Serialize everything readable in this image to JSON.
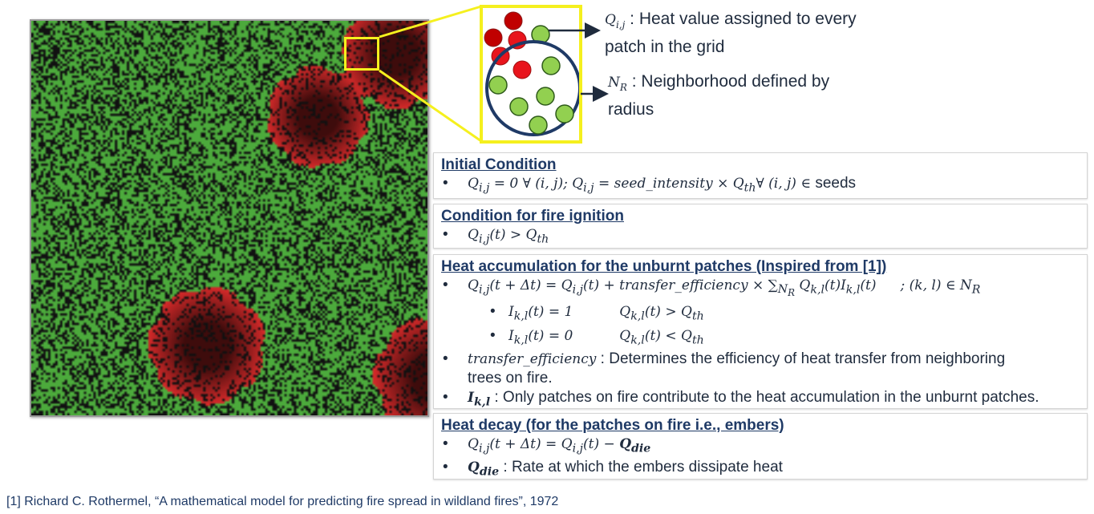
{
  "annotations": {
    "q_symbol": "Q",
    "q_sub": "i,j",
    "q_text_line1": " : Heat value assigned to every",
    "q_text_line2": "patch in the grid",
    "n_symbol": "N",
    "n_sub": "R",
    "n_text_line1": " : Neighborhood defined by",
    "n_text_line2": "radius"
  },
  "colors": {
    "healthy_tree": "#4caa3c",
    "burning_tree": "#d42a2a",
    "ember_dark": "#4a0a0a",
    "empty": "#111111",
    "highlight": "#f5f01e",
    "dot_fire": "#e8141c",
    "dot_fire_dark": "#c00000",
    "dot_tree": "#92d050",
    "ring": "#1f3a66"
  },
  "sections": {
    "initial": {
      "title": "Initial Condition",
      "eq": "Q",
      "eq1": "i,j",
      "eq2": " = 0 ∀ (i, j);     Q",
      "eq3": "i,j",
      "eq4": " = seed_intensity × Q",
      "eq5": "th",
      "eq6": "∀ (i, j) ∈ ",
      "eq_tail": "seeds"
    },
    "ignition": {
      "title": "Condition for fire ignition",
      "a": "Q",
      "b": "i,j",
      "c": "(t) > Q",
      "d": "th"
    },
    "accumulation": {
      "title": "Heat accumulation for the unburnt patches (Inspired from [1])",
      "eq_a": "Q",
      "eq_b": "i,j",
      "eq_c": "(t + Δt) = Q",
      "eq_d": "i,j",
      "eq_e": "(t) + transfer_efficiency × ∑",
      "eq_f": "N",
      "eq_g": "R",
      "eq_h": " Q",
      "eq_i": "k,l",
      "eq_j": "(t)I",
      "eq_k": "k,l",
      "eq_l": "(t)",
      "eq_m": "; (k, l) ∈ N",
      "eq_n": "R",
      "sub1_a": "I",
      "sub1_b": "k,l",
      "sub1_c": "(t) = 1",
      "sub1_d": "Q",
      "sub1_e": "k,l",
      "sub1_f": "(t) > Q",
      "sub1_g": "th",
      "sub2_a": "I",
      "sub2_b": "k,l",
      "sub2_c": "(t) = 0",
      "sub2_d": "Q",
      "sub2_e": "k,l",
      "sub2_f": "(t) < Q",
      "sub2_g": "th",
      "te_sym": "transfer_efficiency",
      "te_text1": " : Determines the efficiency of heat transfer from neighboring",
      "te_text2": "trees on fire.",
      "i_sym": "I",
      "i_sub": "k,l",
      "i_text": " : Only patches on fire contribute to the heat accumulation in the unburnt patches."
    },
    "decay": {
      "title": "Heat decay (for the patches on fire i.e., embers)",
      "eq_a": "Q",
      "eq_b": "i,j",
      "eq_c": "(t + Δt) = Q",
      "eq_d": "i,j",
      "eq_e": "(t) − ",
      "eq_f": "Q",
      "eq_g": "die",
      "q_sym": "Q",
      "q_sub": "die",
      "q_text": " : Rate at which the embers dissipate heat"
    }
  },
  "reference": "[1] Richard C. Rothermel, “A mathematical model for predicting fire spread in wildland fires”, 1972"
}
